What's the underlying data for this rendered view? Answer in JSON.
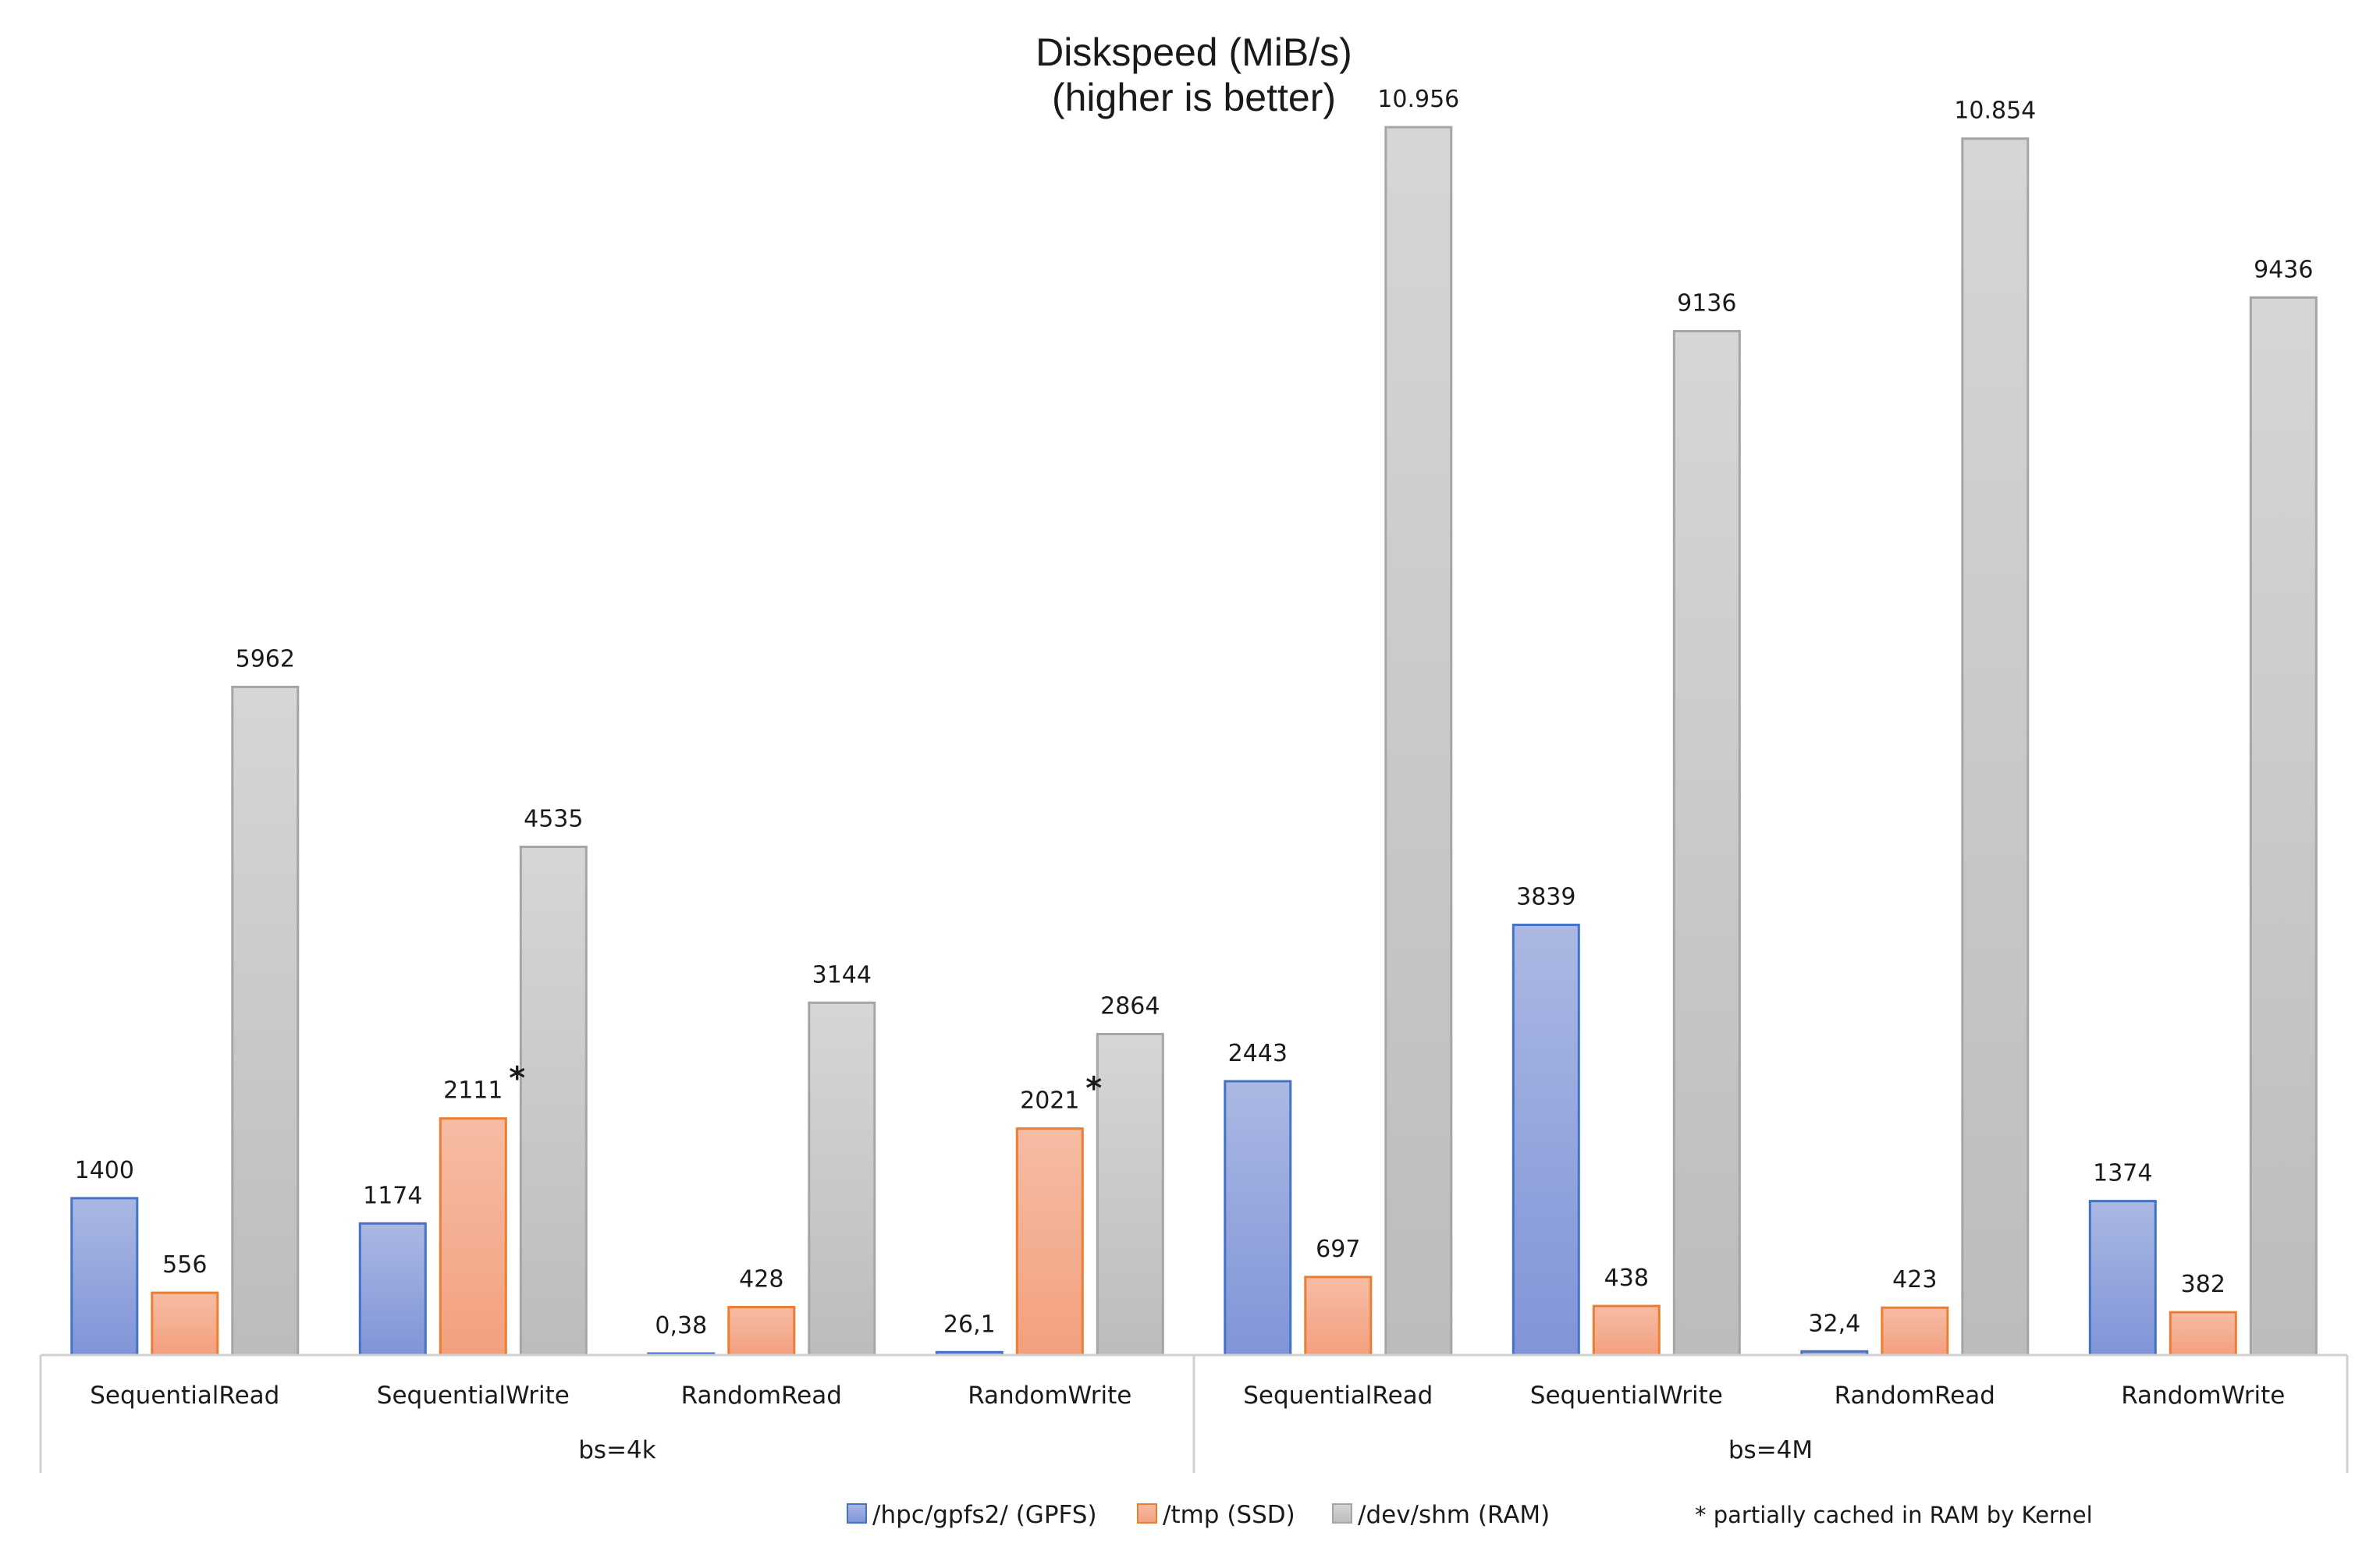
{
  "chart_data": {
    "type": "bar",
    "title": "Diskspeed (MiB/s)",
    "subtitle": "(higher is better)",
    "xlabel": "",
    "ylabel": "",
    "ylim": [
      0,
      11000
    ],
    "grid": false,
    "legend_position": "bottom",
    "categories": [
      "SequentialRead",
      "SequentialWrite",
      "RandomRead",
      "RandomWrite",
      "SequentialRead",
      "SequentialWrite",
      "RandomRead",
      "RandomWrite"
    ],
    "groups": [
      {
        "label": "bs=4k",
        "categories": [
          0,
          1,
          2,
          3
        ]
      },
      {
        "label": "bs=4M",
        "categories": [
          4,
          5,
          6,
          7
        ]
      }
    ],
    "series": [
      {
        "name": "/hpc/gpfs2/ (GPFS)",
        "color": "#8fa3dd",
        "border": "#4472c4",
        "values": [
          1400,
          1174,
          0.38,
          26.1,
          2443,
          3839,
          32.4,
          1374
        ],
        "labels": [
          "1400",
          "1174",
          "0,38",
          "26,1",
          "2443",
          "3839",
          "32,4",
          "1374"
        ]
      },
      {
        "name": "/tmp (SSD)",
        "color": "#f4a98a",
        "border": "#ed7d31",
        "values": [
          556,
          2111,
          428,
          2021,
          697,
          438,
          423,
          382
        ],
        "labels": [
          "556",
          "2111",
          "428",
          "2021",
          "697",
          "438",
          "423",
          "382"
        ]
      },
      {
        "name": "/dev/shm (RAM)",
        "color": "#c4c4c4",
        "border": "#a5a5a5",
        "values": [
          5962,
          4535,
          3144,
          2864,
          10956,
          9136,
          10854,
          9436
        ],
        "labels": [
          "5962",
          "4535",
          "3144",
          "2864",
          "10.956",
          "9136",
          "10.854",
          "9436"
        ]
      }
    ],
    "annotations": [
      {
        "series": 1,
        "category": 1,
        "text": "*"
      },
      {
        "series": 1,
        "category": 3,
        "text": "*"
      }
    ],
    "note": "* partially cached in RAM by Kernel"
  }
}
